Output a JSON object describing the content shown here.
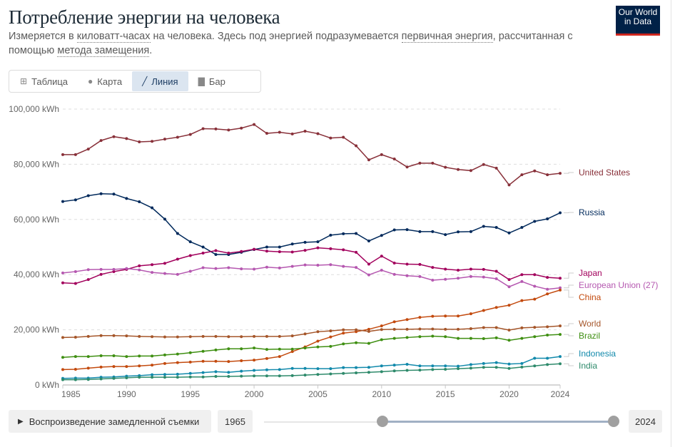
{
  "header": {
    "title": "Потребление энергии на человека",
    "subtitle_parts": [
      "Измеряется в ",
      "киловатт-часах",
      " на человека. Здесь под энергией подразумевается ",
      "первичная энергия",
      ", рассчитанная с помощью ",
      "метода замещения",
      "."
    ],
    "logo_line1": "Our World",
    "logo_line2": "in Data"
  },
  "tabs": [
    {
      "label": "Таблица",
      "icon": "table-icon",
      "active": false
    },
    {
      "label": "Карта",
      "icon": "globe-icon",
      "active": false
    },
    {
      "label": "Линия",
      "icon": "line-chart-icon",
      "active": true
    },
    {
      "label": "Бар",
      "icon": "bar-chart-icon",
      "active": false
    }
  ],
  "controls": {
    "play_label": "Воспроизведение замедленной съемки",
    "start_year": "1965",
    "end_year": "2024",
    "range_selected": [
      1985,
      2024
    ]
  },
  "chart_data": {
    "type": "line",
    "x": [
      1985,
      1986,
      1987,
      1988,
      1989,
      1990,
      1991,
      1992,
      1993,
      1994,
      1995,
      1996,
      1997,
      1998,
      1999,
      2000,
      2001,
      2002,
      2003,
      2004,
      2005,
      2006,
      2007,
      2008,
      2009,
      2010,
      2011,
      2012,
      2013,
      2014,
      2015,
      2016,
      2017,
      2018,
      2019,
      2020,
      2021,
      2022,
      2023,
      2024
    ],
    "xlim": [
      1985,
      2024
    ],
    "x_ticks": [
      "1985",
      "1990",
      "1995",
      "2000",
      "2005",
      "2010",
      "2015",
      "2020",
      "2024"
    ],
    "ylim": [
      0,
      100000
    ],
    "y_ticks": [
      "0 kWh",
      "20,000 kWh",
      "40,000 kWh",
      "60,000 kWh",
      "80,000 kWh",
      "100,000 kWh"
    ],
    "grid": "horizontal-dashed",
    "legend": "right-end-labels",
    "series": [
      {
        "name": "United States",
        "color": "#883039",
        "values": [
          83500,
          83500,
          85500,
          88600,
          90000,
          89300,
          88100,
          88300,
          89100,
          89800,
          90800,
          92900,
          92800,
          92400,
          93100,
          94400,
          91200,
          91600,
          91000,
          92000,
          91100,
          89500,
          89800,
          86700,
          81600,
          83500,
          81900,
          79000,
          80400,
          80400,
          78900,
          78100,
          77700,
          79900,
          78600,
          72500,
          76200,
          77600,
          76200,
          76700
        ]
      },
      {
        "name": "Russia",
        "color": "#00295b",
        "values": [
          66500,
          67100,
          68600,
          69300,
          69200,
          67600,
          66400,
          64200,
          60100,
          54900,
          51900,
          50000,
          47300,
          47300,
          48100,
          49100,
          50000,
          50000,
          51100,
          51700,
          51900,
          54300,
          54800,
          54900,
          52200,
          54200,
          56200,
          56300,
          55600,
          55600,
          54500,
          55500,
          55600,
          57500,
          57100,
          55100,
          57100,
          59300,
          60200,
          62400
        ]
      },
      {
        "name": "Japan",
        "color": "#a2005c",
        "values": [
          37000,
          36800,
          38200,
          40100,
          41100,
          41900,
          43200,
          43600,
          44100,
          45600,
          46900,
          47800,
          48700,
          47800,
          48400,
          49200,
          48500,
          48300,
          48200,
          48800,
          49700,
          49400,
          49000,
          48100,
          43800,
          46700,
          44200,
          43800,
          43700,
          42600,
          42000,
          41600,
          42000,
          41900,
          41200,
          38200,
          40000,
          40000,
          39000,
          38700
        ]
      },
      {
        "name": "European Union (27)",
        "color": "#b558b0",
        "values": [
          40600,
          41100,
          41800,
          41900,
          41900,
          42200,
          41700,
          40800,
          40400,
          40100,
          41200,
          42500,
          42200,
          42500,
          42100,
          42000,
          42700,
          42400,
          43000,
          43500,
          43400,
          43600,
          43000,
          42600,
          39900,
          41600,
          40100,
          39600,
          39300,
          38000,
          38300,
          38700,
          39300,
          39100,
          38500,
          35600,
          37500,
          35800,
          34700,
          35200
        ]
      },
      {
        "name": "China",
        "color": "#c34a0e",
        "values": [
          5600,
          5700,
          6100,
          6500,
          6700,
          6700,
          6900,
          7200,
          7800,
          8100,
          8300,
          8600,
          8600,
          8500,
          8800,
          9000,
          9600,
          10300,
          12100,
          13800,
          15900,
          17400,
          18800,
          19300,
          20200,
          21400,
          22900,
          23700,
          24500,
          24900,
          25000,
          25000,
          25800,
          27000,
          28100,
          28900,
          30600,
          31100,
          33000,
          34400
        ]
      },
      {
        "name": "World",
        "color": "#a5562a",
        "values": [
          17200,
          17300,
          17600,
          17900,
          17900,
          17800,
          17600,
          17500,
          17400,
          17400,
          17500,
          17600,
          17600,
          17500,
          17500,
          17600,
          17600,
          17600,
          17800,
          18500,
          19300,
          19600,
          20000,
          20000,
          19400,
          20100,
          20200,
          20200,
          20300,
          20300,
          20200,
          20200,
          20400,
          20800,
          20800,
          19900,
          20700,
          20900,
          21100,
          21400
        ]
      },
      {
        "name": "Brazil",
        "color": "#3f8f12",
        "values": [
          10000,
          10300,
          10300,
          10600,
          10600,
          10300,
          10500,
          10500,
          10900,
          11200,
          11700,
          12200,
          12700,
          13100,
          13100,
          13400,
          12900,
          13000,
          13000,
          13400,
          13800,
          14000,
          14900,
          15300,
          15100,
          16400,
          16900,
          17200,
          17500,
          17700,
          17500,
          16900,
          16900,
          16800,
          17100,
          16200,
          16900,
          17500,
          18100,
          18300
        ]
      },
      {
        "name": "Indonesia",
        "color": "#1189ab",
        "values": [
          2400,
          2500,
          2500,
          2800,
          2900,
          3200,
          3400,
          3700,
          3800,
          3900,
          4200,
          4500,
          4800,
          4600,
          5000,
          5300,
          5500,
          5600,
          6000,
          6000,
          5900,
          5900,
          6300,
          6300,
          6400,
          6900,
          7200,
          7500,
          6900,
          6900,
          6900,
          6800,
          7400,
          7800,
          8100,
          7600,
          7800,
          9700,
          9700,
          10300
        ]
      },
      {
        "name": "India",
        "color": "#2e8a6b",
        "values": [
          1900,
          1900,
          2000,
          2200,
          2400,
          2600,
          2800,
          2800,
          2800,
          2800,
          2900,
          2900,
          3100,
          3100,
          3200,
          3300,
          3300,
          3300,
          3400,
          3600,
          3800,
          4000,
          4200,
          4400,
          4600,
          4800,
          5100,
          5300,
          5400,
          5600,
          5700,
          5900,
          6100,
          6400,
          6400,
          6000,
          6500,
          6900,
          7400,
          7700
        ]
      }
    ]
  }
}
